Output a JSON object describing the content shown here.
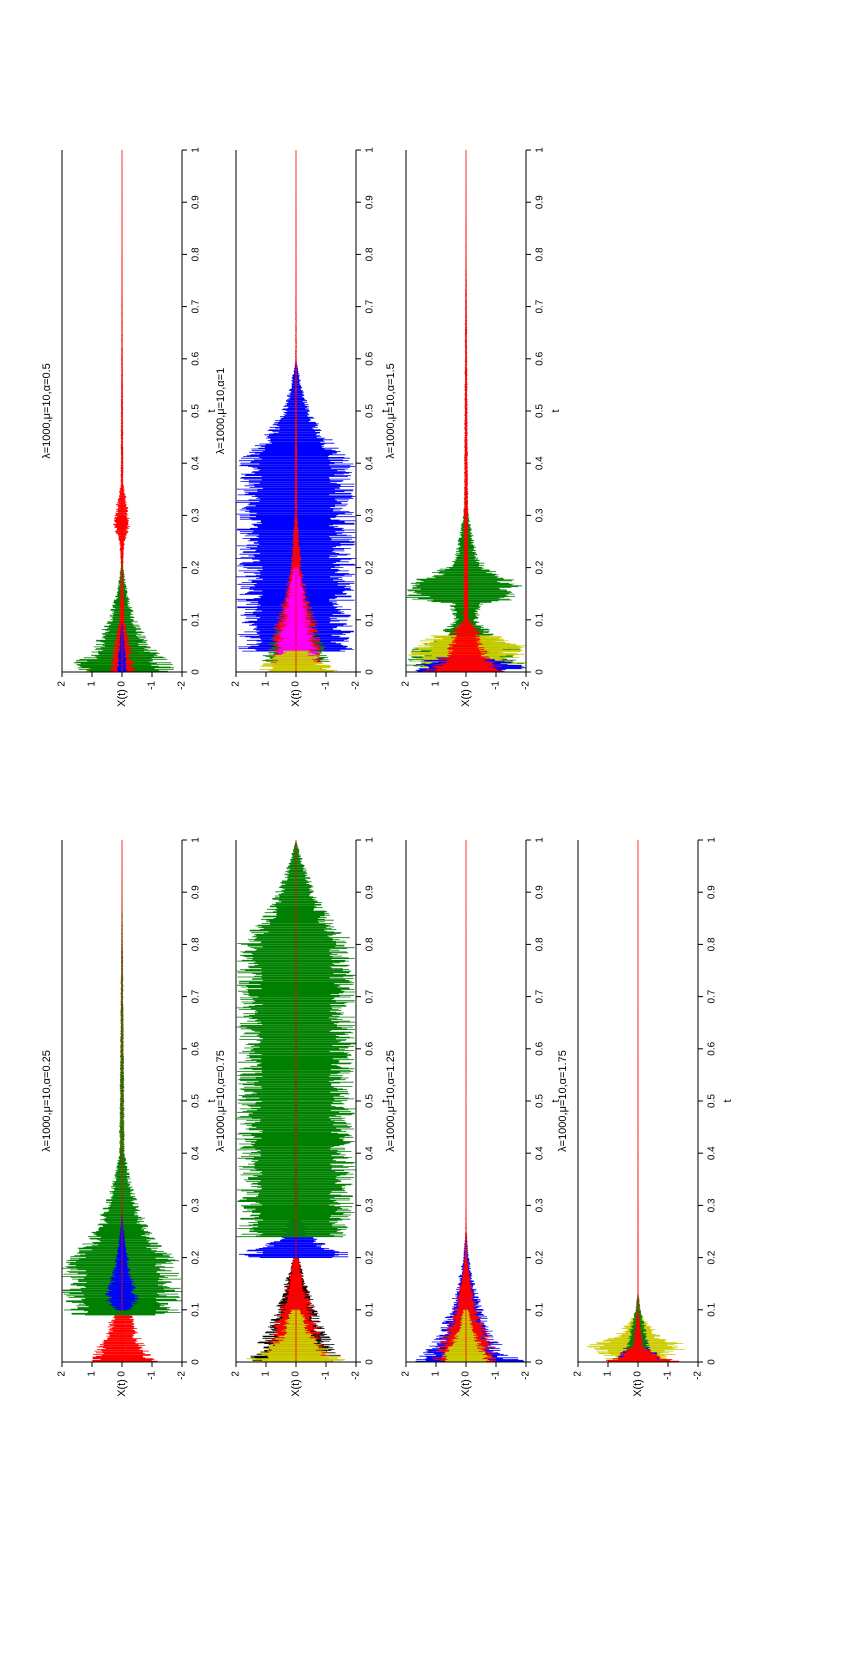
{
  "figure": {
    "orientation": "rotated 90 degrees counter-clockwise (landscape page)",
    "layout": "2 columns x 3 rows of subplots; left column has 4 subplots"
  },
  "chart_data": [
    {
      "type": "line",
      "title": "λ=1000,μ=10,α=0.25",
      "xlabel": "t",
      "ylabel": "X(t)",
      "xlim": [
        0,
        1
      ],
      "ylim": [
        -2,
        2
      ],
      "xticks": [
        "0",
        "0.1",
        "0.2",
        "0.3",
        "0.4",
        "0.5",
        "0.6",
        "0.7",
        "0.8",
        "0.9",
        "1"
      ],
      "yticks": [
        "-2",
        "-1",
        "0",
        "1",
        "2"
      ],
      "grid": false,
      "legend": "none",
      "series": [
        {
          "color": "#ff0000",
          "x": [
            0,
            0.05,
            0.1,
            0.12,
            0.15,
            0.2,
            0.3,
            0.4,
            0.5,
            1.0
          ],
          "y_envelope": [
            1.2,
            0.6,
            0.3,
            0.1,
            0.05,
            0.05,
            0.02,
            0.01,
            0.0,
            0.0
          ]
        },
        {
          "color": "#008000",
          "x": [
            0.09,
            0.1,
            0.15,
            0.2,
            0.21,
            0.25,
            0.3,
            0.35,
            0.4,
            1.0
          ],
          "y_envelope": [
            2.0,
            2.0,
            2.0,
            2.0,
            1.6,
            1.0,
            0.6,
            0.3,
            0.1,
            0.0
          ]
        },
        {
          "color": "#0000ff",
          "x": [
            0.1,
            0.12,
            0.14,
            0.18,
            0.22,
            0.26,
            0.3
          ],
          "y_envelope": [
            0.3,
            0.6,
            0.5,
            0.3,
            0.15,
            0.05,
            0.0
          ]
        }
      ]
    },
    {
      "type": "line",
      "title": "λ=1000,μ=10,α=0.75",
      "xlabel": "t",
      "ylabel": "X(t)",
      "xlim": [
        0,
        1
      ],
      "ylim": [
        -2,
        2
      ],
      "xticks": [
        "0",
        "0.1",
        "0.2",
        "0.3",
        "0.4",
        "0.5",
        "0.6",
        "0.7",
        "0.8",
        "0.9",
        "1"
      ],
      "yticks": [
        "-2",
        "-1",
        "0",
        "1",
        "2"
      ],
      "grid": false,
      "legend": "none",
      "series": [
        {
          "color": "#000000",
          "x": [
            0,
            0.03,
            0.06,
            0.1,
            0.15,
            0.2
          ],
          "y_envelope": [
            1.6,
            1.4,
            1.0,
            0.7,
            0.4,
            0.1
          ]
        },
        {
          "color": "#ff0000",
          "x": [
            0,
            0.05,
            0.1,
            0.15,
            0.2,
            1.0
          ],
          "y_envelope": [
            1.2,
            0.9,
            0.6,
            0.3,
            0.1,
            0.0
          ]
        },
        {
          "color": "#0000ff",
          "x": [
            0.2,
            0.21,
            0.22,
            0.24,
            0.28,
            0.3
          ],
          "y_envelope": [
            2.0,
            2.0,
            1.2,
            0.6,
            0.2,
            0.05
          ]
        },
        {
          "color": "#008000",
          "x": [
            0.24,
            0.3,
            0.4,
            0.5,
            0.6,
            0.7,
            0.8,
            0.85,
            0.9,
            0.95,
            1.0
          ],
          "y_envelope": [
            2.0,
            2.0,
            2.0,
            2.0,
            2.0,
            2.0,
            2.0,
            1.2,
            0.7,
            0.3,
            0.0
          ]
        },
        {
          "color": "#cccc00",
          "x": [
            0,
            0.02,
            0.05,
            0.1
          ],
          "y_envelope": [
            1.9,
            1.2,
            0.6,
            0.2
          ]
        }
      ]
    },
    {
      "type": "line",
      "title": "λ=1000,μ=10,α=1.25",
      "xlabel": "t",
      "ylabel": "X(t)",
      "xlim": [
        0,
        1
      ],
      "ylim": [
        -2,
        2
      ],
      "xticks": [
        "0",
        "0.1",
        "0.2",
        "0.3",
        "0.4",
        "0.5",
        "0.6",
        "0.7",
        "0.8",
        "0.9",
        "1"
      ],
      "yticks": [
        "-2",
        "-1",
        "0",
        "1",
        "2"
      ],
      "grid": false,
      "legend": "none",
      "series": [
        {
          "color": "#0000ff",
          "x": [
            0,
            0.02,
            0.05,
            0.1,
            0.15,
            0.2,
            0.25
          ],
          "y_envelope": [
            2.0,
            1.4,
            1.0,
            0.6,
            0.3,
            0.1,
            0.02
          ]
        },
        {
          "color": "#ff0000",
          "x": [
            0,
            0.05,
            0.1,
            0.15,
            0.2,
            0.3,
            1.0
          ],
          "y_envelope": [
            1.3,
            0.8,
            0.4,
            0.2,
            0.05,
            0.01,
            0.0
          ]
        },
        {
          "color": "#cccc00",
          "x": [
            0,
            0.03,
            0.06,
            0.1
          ],
          "y_envelope": [
            1.0,
            0.6,
            0.3,
            0.1
          ]
        }
      ]
    },
    {
      "type": "line",
      "title": "λ=1000,μ=10,α=1.75",
      "xlabel": "t",
      "ylabel": "X(t)",
      "xlim": [
        0,
        1
      ],
      "ylim": [
        -2,
        2
      ],
      "xticks": [
        "0",
        "0.1",
        "0.2",
        "0.3",
        "0.4",
        "0.5",
        "0.6",
        "0.7",
        "0.8",
        "0.9",
        "1"
      ],
      "yticks": [
        "-2",
        "-1",
        "0",
        "1",
        "2"
      ],
      "grid": false,
      "legend": "none",
      "series": [
        {
          "color": "#cccc00",
          "x": [
            0,
            0.02,
            0.03,
            0.05,
            0.08,
            0.1
          ],
          "y_envelope": [
            1.0,
            1.4,
            1.8,
            0.8,
            0.3,
            0.05
          ]
        },
        {
          "color": "#0000ff",
          "x": [
            0,
            0.02,
            0.04,
            0.08
          ],
          "y_envelope": [
            1.0,
            0.6,
            0.3,
            0.05
          ]
        },
        {
          "color": "#008000",
          "x": [
            0,
            0.03,
            0.06,
            0.1,
            0.14
          ],
          "y_envelope": [
            0.6,
            0.4,
            0.3,
            0.1,
            0.0
          ]
        },
        {
          "color": "#ff0000",
          "x": [
            0,
            0.01,
            0.03,
            0.1,
            1.0
          ],
          "y_envelope": [
            1.5,
            0.8,
            0.2,
            0.02,
            0.0
          ]
        }
      ]
    },
    {
      "type": "line",
      "title": "λ=1000,μ=10,α=0.5",
      "xlabel": "t",
      "ylabel": "X(t)",
      "xlim": [
        0,
        1
      ],
      "ylim": [
        -2,
        2
      ],
      "xticks": [
        "0",
        "0.1",
        "0.2",
        "0.3",
        "0.4",
        "0.5",
        "0.6",
        "0.7",
        "0.8",
        "0.9",
        "1"
      ],
      "yticks": [
        "-2",
        "-1",
        "0",
        "1",
        "2"
      ],
      "grid": false,
      "legend": "none",
      "series": [
        {
          "color": "#cccc00",
          "x": [
            0,
            0.02,
            0.04
          ],
          "y_envelope": [
            1.8,
            1.0,
            0.5
          ]
        },
        {
          "color": "#008000",
          "x": [
            0,
            0.02,
            0.05,
            0.1,
            0.15,
            0.2,
            0.25,
            0.3,
            0.35
          ],
          "y_envelope": [
            2.0,
            1.6,
            1.0,
            0.5,
            0.2,
            0.05,
            0.05,
            0.03,
            0.01
          ]
        },
        {
          "color": "#ff0000",
          "x": [
            0,
            0.05,
            0.1,
            0.2,
            0.25,
            0.28,
            0.32,
            0.36,
            1.0
          ],
          "y_envelope": [
            0.5,
            0.3,
            0.1,
            0.03,
            0.1,
            0.3,
            0.2,
            0.05,
            0.0
          ]
        },
        {
          "color": "#0000ff",
          "x": [
            0,
            0.05,
            0.1
          ],
          "y_envelope": [
            0.2,
            0.1,
            0.02
          ]
        }
      ]
    },
    {
      "type": "line",
      "title": "λ=1000,μ=10,α=1",
      "xlabel": "t",
      "ylabel": "X(t)",
      "xlim": [
        0,
        1
      ],
      "ylim": [
        -2,
        2
      ],
      "xticks": [
        "0",
        "0.1",
        "0.2",
        "0.3",
        "0.4",
        "0.5",
        "0.6",
        "0.7",
        "0.8",
        "0.9",
        "1"
      ],
      "yticks": [
        "-2",
        "-1",
        "0",
        "1",
        "2"
      ],
      "grid": false,
      "legend": "none",
      "series": [
        {
          "color": "#0000ff",
          "x": [
            0.04,
            0.1,
            0.2,
            0.3,
            0.4,
            0.42,
            0.44,
            0.46,
            0.5,
            0.55,
            0.6
          ],
          "y_envelope": [
            2.0,
            2.0,
            2.0,
            2.0,
            2.0,
            1.7,
            1.3,
            1.0,
            0.5,
            0.2,
            0.0
          ]
        },
        {
          "color": "#008000",
          "x": [
            0.02,
            0.05,
            0.08,
            0.12,
            0.15,
            0.2
          ],
          "y_envelope": [
            1.2,
            1.0,
            0.7,
            0.5,
            0.3,
            0.1
          ]
        },
        {
          "color": "#ff0000",
          "x": [
            0,
            0.05,
            0.1,
            0.15,
            0.2,
            0.3,
            1.0
          ],
          "y_envelope": [
            1.0,
            0.9,
            0.7,
            0.4,
            0.2,
            0.05,
            0.0
          ]
        },
        {
          "color": "#ff00ff",
          "x": [
            0.02,
            0.06,
            0.1,
            0.15,
            0.2
          ],
          "y_envelope": [
            0.8,
            0.7,
            0.5,
            0.3,
            0.1
          ]
        },
        {
          "color": "#cccc00",
          "x": [
            0,
            0.02,
            0.04
          ],
          "y_envelope": [
            1.6,
            1.0,
            0.5
          ]
        }
      ]
    },
    {
      "type": "line",
      "title": "λ=1000,μ=10,α=1.5",
      "xlabel": "t",
      "ylabel": "X(t)",
      "xlim": [
        0,
        1
      ],
      "ylim": [
        -2,
        2
      ],
      "xticks": [
        "0",
        "0.1",
        "0.2",
        "0.3",
        "0.4",
        "0.5",
        "0.6",
        "0.7",
        "0.8",
        "0.9",
        "1"
      ],
      "yticks": [
        "-2",
        "-1",
        "0",
        "1",
        "2"
      ],
      "grid": false,
      "legend": "none",
      "series": [
        {
          "color": "#008000",
          "x": [
            0.01,
            0.03,
            0.05,
            0.06,
            0.1,
            0.13,
            0.14,
            0.17,
            0.2,
            0.22,
            0.3,
            0.36
          ],
          "y_envelope": [
            2.0,
            2.0,
            1.8,
            1.2,
            0.4,
            0.6,
            2.0,
            2.0,
            0.8,
            0.4,
            0.1,
            0.03
          ]
        },
        {
          "color": "#cccc00",
          "x": [
            0.01,
            0.03,
            0.05,
            0.07
          ],
          "y_envelope": [
            2.0,
            2.0,
            2.0,
            1.2
          ]
        },
        {
          "color": "#0000ff",
          "x": [
            0,
            0.01,
            0.02,
            0.03
          ],
          "y_envelope": [
            2.0,
            2.0,
            1.6,
            0.8
          ]
        },
        {
          "color": "#ff0000",
          "x": [
            0,
            0.02,
            0.05,
            0.08,
            0.1,
            1.0
          ],
          "y_envelope": [
            1.5,
            1.0,
            0.6,
            0.5,
            0.1,
            0.0
          ]
        }
      ]
    }
  ]
}
